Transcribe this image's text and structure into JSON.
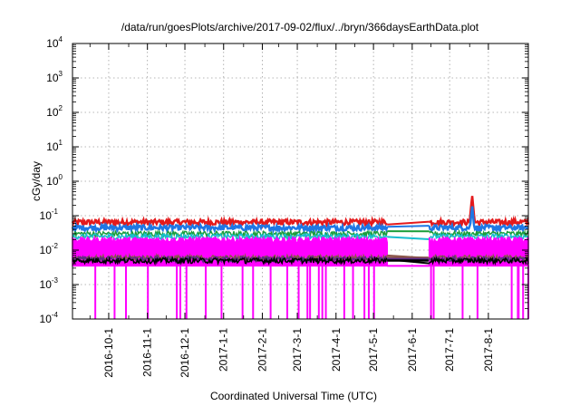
{
  "chart_data": {
    "type": "line",
    "title": "/data/run/goesPlots/archive/2017-09-02/flux/../bryn/366daysEarthData.plot",
    "xlabel": "Coordinated Universal Time (UTC)",
    "ylabel": "cGy/day",
    "y_scale": "log",
    "ylim": [
      0.0001,
      10000
    ],
    "xlim": [
      "2016-09-02",
      "2017-09-02"
    ],
    "grid": true,
    "legend": "none",
    "y_ticks": [
      {
        "base": "10",
        "exp": "-4",
        "value": 0.0001
      },
      {
        "base": "10",
        "exp": "-3",
        "value": 0.001
      },
      {
        "base": "10",
        "exp": "-2",
        "value": 0.01
      },
      {
        "base": "10",
        "exp": "-1",
        "value": 0.1
      },
      {
        "base": "10",
        "exp": "0",
        "value": 1
      },
      {
        "base": "10",
        "exp": "1",
        "value": 10
      },
      {
        "base": "10",
        "exp": "2",
        "value": 100
      },
      {
        "base": "10",
        "exp": "3",
        "value": 1000
      },
      {
        "base": "10",
        "exp": "4",
        "value": 10000
      }
    ],
    "x_ticks": [
      {
        "label": "2016-10-1",
        "date": "2016-10-01"
      },
      {
        "label": "2016-11-1",
        "date": "2016-11-01"
      },
      {
        "label": "2016-12-1",
        "date": "2016-12-01"
      },
      {
        "label": "2017-1-1",
        "date": "2017-01-01"
      },
      {
        "label": "2017-2-1",
        "date": "2017-02-01"
      },
      {
        "label": "2017-3-1",
        "date": "2017-03-01"
      },
      {
        "label": "2017-4-1",
        "date": "2017-04-01"
      },
      {
        "label": "2017-5-1",
        "date": "2017-05-01"
      },
      {
        "label": "2017-6-1",
        "date": "2017-06-01"
      },
      {
        "label": "2017-7-1",
        "date": "2017-07-01"
      },
      {
        "label": "2017-8-1",
        "date": "2017-08-01"
      }
    ],
    "data_gap": {
      "start": "2017-05-12",
      "end": "2017-06-14"
    },
    "series": [
      {
        "color": "#e41a1c",
        "baseline": 0.065,
        "spikes": [
          {
            "date": "2017-07-19",
            "value": 0.4
          }
        ]
      },
      {
        "color": "#1f77e4",
        "baseline": 0.045,
        "spikes": [
          {
            "date": "2017-07-19",
            "value": 0.2
          }
        ]
      },
      {
        "color": "#1a9e3a",
        "baseline": 0.03,
        "spikes": []
      },
      {
        "color": "#17becf",
        "baseline": 0.025,
        "spikes": []
      },
      {
        "color": "#ff00ff",
        "baseline": 0.02,
        "floor": 0.0035,
        "dropouts_to": 0.0001,
        "spikes": []
      },
      {
        "color": "#8c564b",
        "baseline": 0.006,
        "spikes": []
      },
      {
        "color": "#5b2a86",
        "baseline": 0.0055,
        "spikes": []
      },
      {
        "color": "#000000",
        "baseline": 0.005,
        "spikes": []
      }
    ]
  }
}
